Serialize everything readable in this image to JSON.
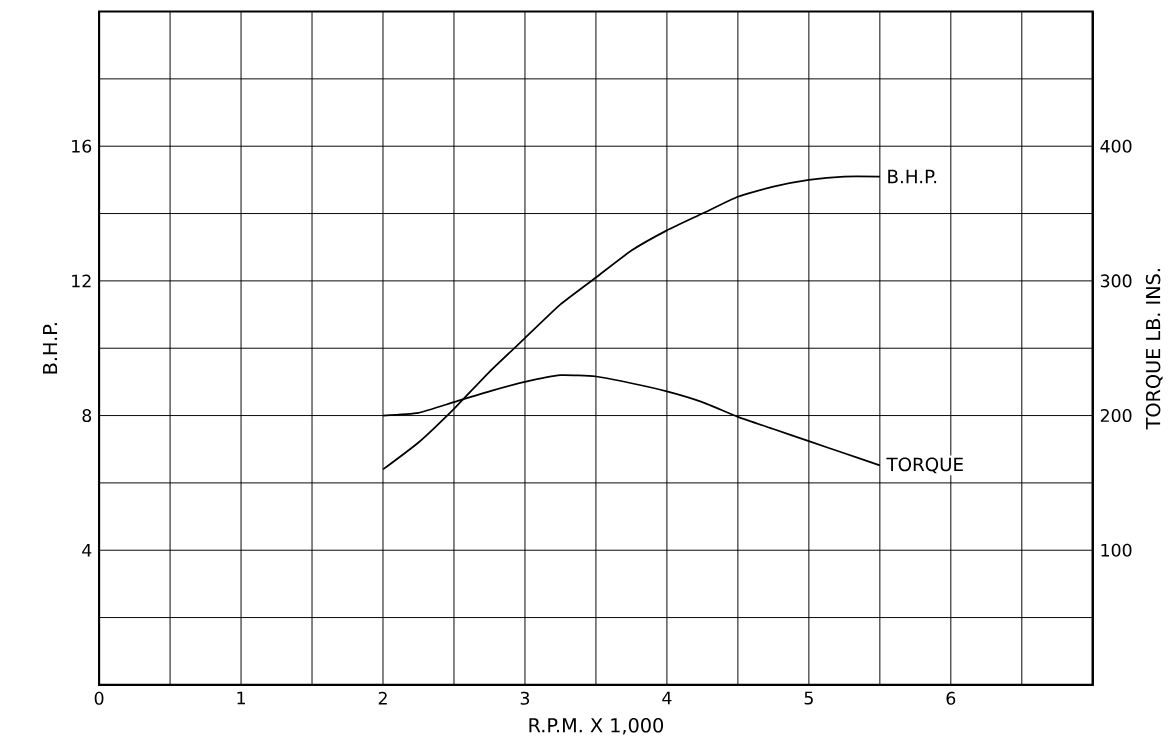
{
  "chart_data": {
    "type": "line",
    "xlabel": "R.P.M.  X  1,000",
    "ylabel": "B.H.P.",
    "y2label": "TORQUE  LB. INS.",
    "x": [
      2.0,
      2.25,
      2.5,
      2.75,
      3.0,
      3.25,
      3.5,
      3.75,
      4.0,
      4.25,
      4.5,
      4.75,
      5.0,
      5.25,
      5.5
    ],
    "series": [
      {
        "name": "B.H.P.",
        "color": "#000000",
        "values": [
          6.4,
          7.2,
          8.2,
          9.3,
          10.3,
          11.3,
          12.1,
          12.9,
          13.5,
          14.0,
          14.5,
          14.8,
          15.0,
          15.1,
          15.1
        ]
      },
      {
        "name": "TORQUE",
        "color": "#000000",
        "axis": "y2",
        "values": [
          200,
          202,
          210,
          218,
          225,
          230,
          229,
          224,
          218,
          210,
          199,
          190,
          181,
          172,
          163
        ]
      }
    ],
    "xlim": [
      0,
      7
    ],
    "xticks": [
      0,
      {
        "value": 0.5,
        "label": null
      },
      1,
      {
        "value": 1.5,
        "label": null
      },
      2,
      {
        "value": 2.5,
        "label": null
      },
      3,
      {
        "value": 3.5,
        "label": null
      },
      4,
      {
        "value": 4.5,
        "label": null
      },
      5,
      {
        "value": 5.5,
        "label": null
      },
      6,
      {
        "value": 6.5,
        "label": null
      }
    ],
    "ylim": [
      0,
      20
    ],
    "yticks": [
      {
        "value": 2,
        "label": null
      },
      4,
      {
        "value": 6,
        "label": null
      },
      8,
      {
        "value": 10,
        "label": null
      },
      12,
      {
        "value": 14,
        "label": null
      },
      16,
      {
        "value": 18,
        "label": null
      }
    ],
    "y2lim": [
      0,
      500
    ],
    "y2ticks": [
      100,
      200,
      300,
      400
    ],
    "grid": true,
    "marker": "none",
    "line_style": "solid"
  }
}
